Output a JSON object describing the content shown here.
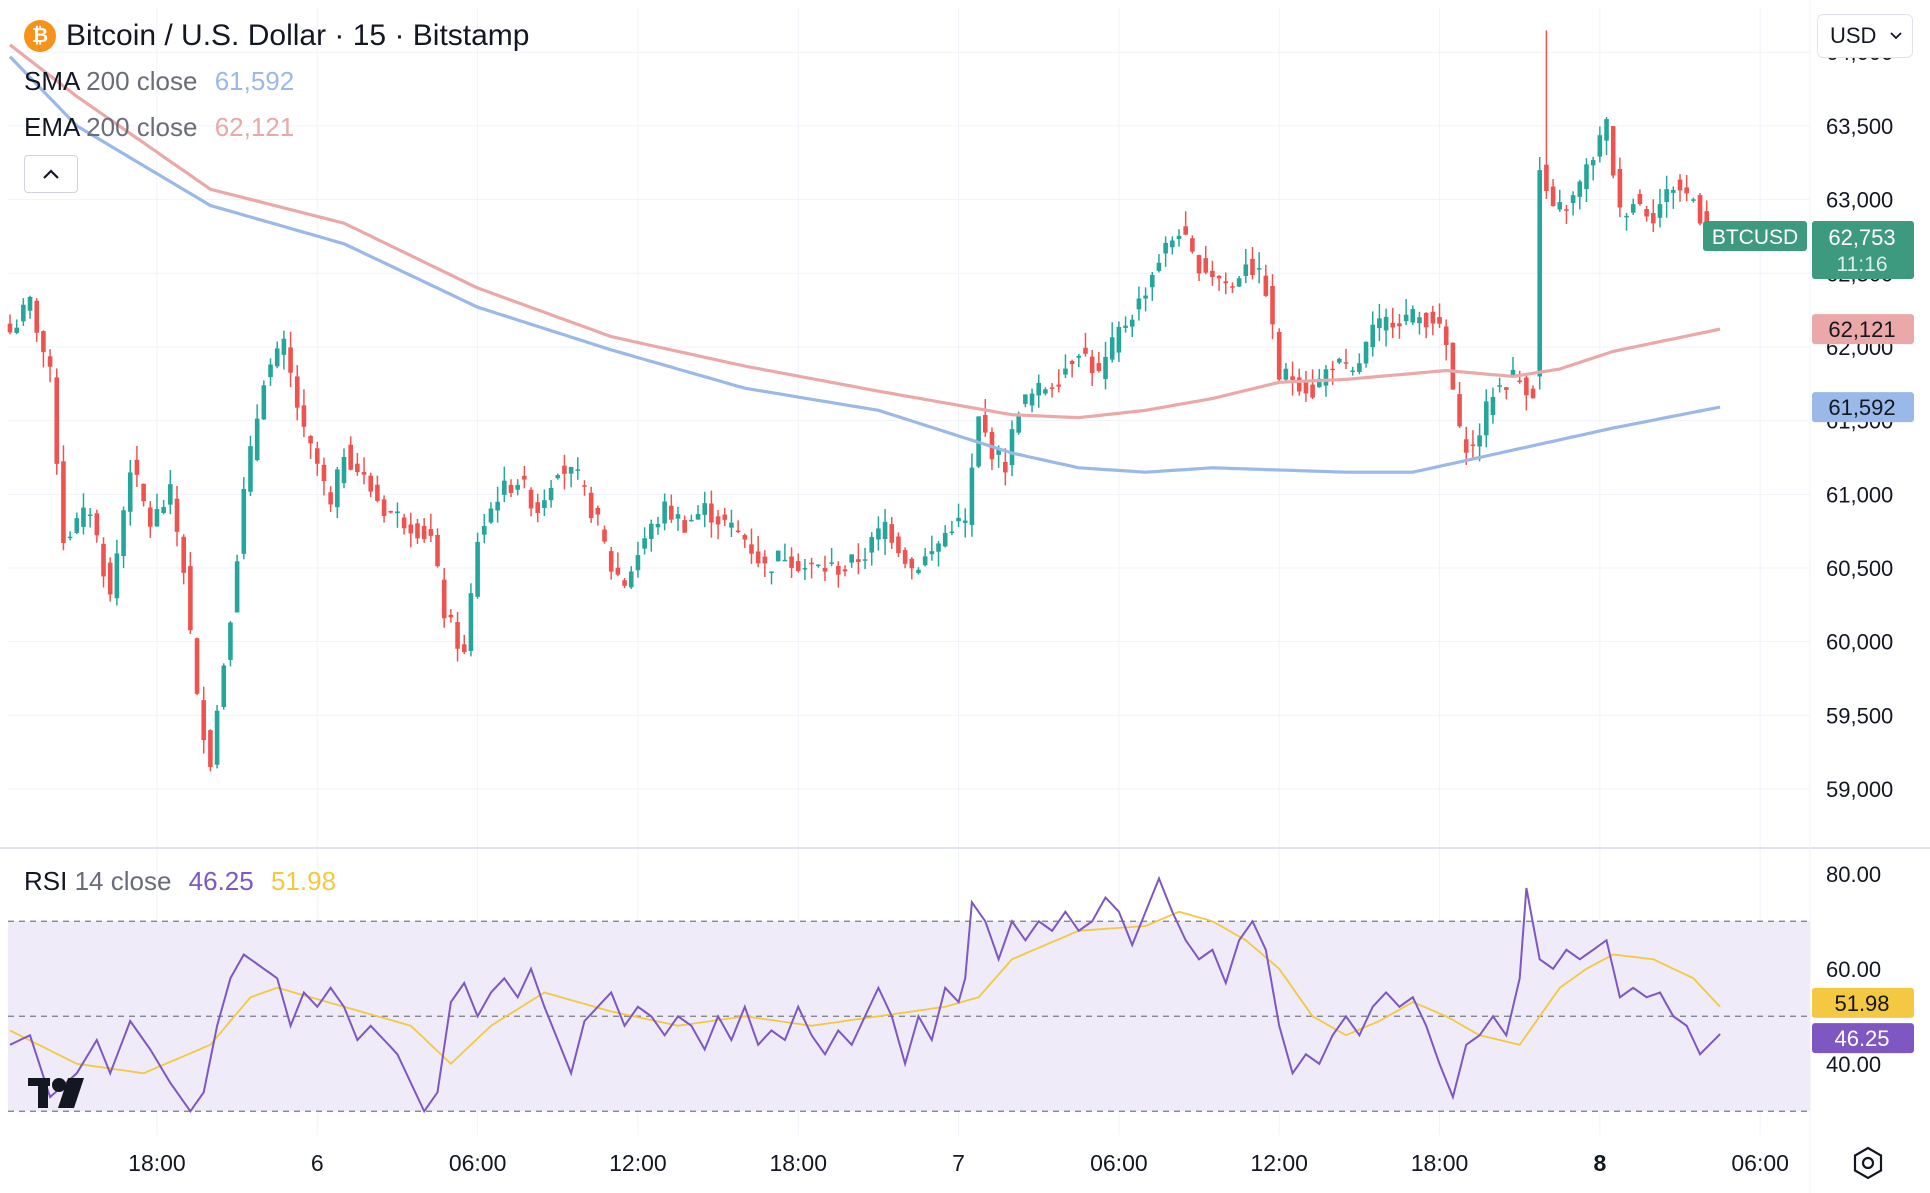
{
  "header": {
    "coin_icon": "bitcoin-icon",
    "symbol_title": "Bitcoin / U.S. Dollar · 15 · Bitstamp",
    "currency": "USD"
  },
  "indicators": {
    "sma": {
      "name": "SMA",
      "params": "200 close",
      "value": "61,592",
      "color": "#9ab9e8"
    },
    "ema": {
      "name": "EMA",
      "params": "200 close",
      "value": "62,121",
      "color": "#eba8a8"
    },
    "rsi": {
      "name": "RSI",
      "params": "14 close",
      "value": "46.25",
      "ma_value": "51.98",
      "color": "#7e57c2",
      "ma_color": "#f5c842"
    }
  },
  "price_axis": {
    "ticks": [
      "64,000",
      "63,500",
      "63,000",
      "62,500",
      "62,000",
      "61,500",
      "61,000",
      "60,500",
      "60,000",
      "59,500",
      "59,000"
    ]
  },
  "rsi_axis": {
    "ticks": [
      "80.00",
      "60.00",
      "40.00"
    ]
  },
  "time_axis": {
    "ticks": [
      "18:00",
      "6",
      "06:00",
      "12:00",
      "18:00",
      "7",
      "06:00",
      "12:00",
      "18:00",
      "8",
      "06:00"
    ]
  },
  "labels": {
    "btc": {
      "ticker": "BTCUSD",
      "price": "62,753",
      "countdown": "11:16",
      "color": "#3d9a7f"
    },
    "ema": "62,121",
    "sma": "61,592",
    "rsi_ma": "51.98",
    "rsi": "46.25"
  },
  "colors": {
    "up": "#26a69a",
    "down": "#ef5350",
    "rsi_band": "#efebf8"
  },
  "chart_data": {
    "type": "candlestick",
    "title": "Bitcoin / U.S. Dollar · 15 · Bitstamp",
    "ylim": [
      58600,
      64300
    ],
    "rsi_ylim": [
      25,
      85
    ],
    "rsi_bands": [
      70,
      50,
      30
    ],
    "x_ticks": [
      {
        "label": "18:00",
        "bar": 22
      },
      {
        "label": "6",
        "bar": 46
      },
      {
        "label": "06:00",
        "bar": 70
      },
      {
        "label": "12:00",
        "bar": 94
      },
      {
        "label": "18:00",
        "bar": 118
      },
      {
        "label": "7",
        "bar": 142
      },
      {
        "label": "06:00",
        "bar": 166
      },
      {
        "label": "12:00",
        "bar": 190
      },
      {
        "label": "18:00",
        "bar": 214
      },
      {
        "label": "8",
        "bar": 238
      },
      {
        "label": "06:00",
        "bar": 262
      }
    ],
    "anchors": [
      [
        0,
        62100
      ],
      [
        3,
        62300
      ],
      [
        6,
        61800
      ],
      [
        8,
        60700
      ],
      [
        12,
        60900
      ],
      [
        15,
        60300
      ],
      [
        18,
        61200
      ],
      [
        21,
        60800
      ],
      [
        24,
        61000
      ],
      [
        26,
        60500
      ],
      [
        28,
        59600
      ],
      [
        30,
        59200
      ],
      [
        33,
        60200
      ],
      [
        35,
        61000
      ],
      [
        38,
        61800
      ],
      [
        41,
        62000
      ],
      [
        44,
        61400
      ],
      [
        46,
        61200
      ],
      [
        48,
        60900
      ],
      [
        50,
        61300
      ],
      [
        53,
        61100
      ],
      [
        56,
        60900
      ],
      [
        60,
        60800
      ],
      [
        63,
        60700
      ],
      [
        65,
        60200
      ],
      [
        68,
        59900
      ],
      [
        70,
        60700
      ],
      [
        73,
        61000
      ],
      [
        76,
        61100
      ],
      [
        79,
        60900
      ],
      [
        82,
        61200
      ],
      [
        85,
        61100
      ],
      [
        88,
        60800
      ],
      [
        90,
        60500
      ],
      [
        92,
        60400
      ],
      [
        95,
        60700
      ],
      [
        98,
        60900
      ],
      [
        101,
        60800
      ],
      [
        104,
        60900
      ],
      [
        107,
        60800
      ],
      [
        110,
        60700
      ],
      [
        113,
        60500
      ],
      [
        116,
        60600
      ],
      [
        119,
        60500
      ],
      [
        122,
        60500
      ],
      [
        125,
        60500
      ],
      [
        128,
        60600
      ],
      [
        131,
        60800
      ],
      [
        135,
        60500
      ],
      [
        138,
        60600
      ],
      [
        141,
        60800
      ],
      [
        143,
        60800
      ],
      [
        145,
        61500
      ],
      [
        147,
        61300
      ],
      [
        149,
        61200
      ],
      [
        151,
        61600
      ],
      [
        154,
        61700
      ],
      [
        157,
        61800
      ],
      [
        160,
        62000
      ],
      [
        163,
        61800
      ],
      [
        166,
        62100
      ],
      [
        169,
        62300
      ],
      [
        172,
        62600
      ],
      [
        175,
        62800
      ],
      [
        177,
        62600
      ],
      [
        180,
        62500
      ],
      [
        183,
        62400
      ],
      [
        185,
        62600
      ],
      [
        188,
        62400
      ],
      [
        190,
        61800
      ],
      [
        192,
        61800
      ],
      [
        195,
        61700
      ],
      [
        198,
        61900
      ],
      [
        201,
        61800
      ],
      [
        204,
        62100
      ],
      [
        207,
        62200
      ],
      [
        210,
        62200
      ],
      [
        213,
        62200
      ],
      [
        215,
        62000
      ],
      [
        217,
        61400
      ],
      [
        219,
        61300
      ],
      [
        222,
        61700
      ],
      [
        225,
        61800
      ],
      [
        228,
        61700
      ],
      [
        229,
        63200
      ],
      [
        231,
        62900
      ],
      [
        234,
        63000
      ],
      [
        237,
        63300
      ],
      [
        239,
        63500
      ],
      [
        241,
        62900
      ],
      [
        243,
        63000
      ],
      [
        246,
        62900
      ],
      [
        249,
        63100
      ],
      [
        252,
        63000
      ],
      [
        254,
        62800
      ],
      [
        256,
        62753
      ]
    ],
    "sma_anchors": [
      [
        0,
        63970
      ],
      [
        10,
        63500
      ],
      [
        30,
        62960
      ],
      [
        50,
        62700
      ],
      [
        70,
        62270
      ],
      [
        90,
        61980
      ],
      [
        110,
        61720
      ],
      [
        130,
        61570
      ],
      [
        150,
        61280
      ],
      [
        160,
        61180
      ],
      [
        170,
        61150
      ],
      [
        180,
        61180
      ],
      [
        200,
        61150
      ],
      [
        210,
        61150
      ],
      [
        220,
        61250
      ],
      [
        230,
        61350
      ],
      [
        240,
        61450
      ],
      [
        256,
        61592
      ]
    ],
    "ema_anchors": [
      [
        0,
        64050
      ],
      [
        10,
        63700
      ],
      [
        30,
        63070
      ],
      [
        50,
        62840
      ],
      [
        70,
        62400
      ],
      [
        90,
        62070
      ],
      [
        110,
        61870
      ],
      [
        130,
        61700
      ],
      [
        150,
        61540
      ],
      [
        160,
        61520
      ],
      [
        170,
        61570
      ],
      [
        180,
        61650
      ],
      [
        190,
        61760
      ],
      [
        200,
        61780
      ],
      [
        215,
        61840
      ],
      [
        225,
        61800
      ],
      [
        232,
        61850
      ],
      [
        240,
        61970
      ],
      [
        256,
        62121
      ]
    ],
    "rsi_anchors": [
      [
        0,
        44
      ],
      [
        3,
        46
      ],
      [
        6,
        33
      ],
      [
        10,
        38
      ],
      [
        13,
        45
      ],
      [
        15,
        38
      ],
      [
        18,
        49
      ],
      [
        21,
        43
      ],
      [
        24,
        36
      ],
      [
        27,
        30
      ],
      [
        29,
        34
      ],
      [
        31,
        48
      ],
      [
        33,
        58
      ],
      [
        35,
        63
      ],
      [
        37,
        61
      ],
      [
        40,
        58
      ],
      [
        42,
        48
      ],
      [
        44,
        55
      ],
      [
        46,
        52
      ],
      [
        48,
        56
      ],
      [
        50,
        52
      ],
      [
        52,
        45
      ],
      [
        54,
        48
      ],
      [
        56,
        45
      ],
      [
        58,
        42
      ],
      [
        60,
        36
      ],
      [
        62,
        30
      ],
      [
        64,
        34
      ],
      [
        66,
        53
      ],
      [
        68,
        57
      ],
      [
        70,
        50
      ],
      [
        72,
        55
      ],
      [
        74,
        58
      ],
      [
        76,
        54
      ],
      [
        78,
        60
      ],
      [
        80,
        52
      ],
      [
        82,
        45
      ],
      [
        84,
        38
      ],
      [
        86,
        49
      ],
      [
        88,
        52
      ],
      [
        90,
        55
      ],
      [
        92,
        48
      ],
      [
        94,
        52
      ],
      [
        96,
        50
      ],
      [
        98,
        46
      ],
      [
        100,
        50
      ],
      [
        102,
        48
      ],
      [
        104,
        43
      ],
      [
        106,
        50
      ],
      [
        108,
        45
      ],
      [
        110,
        52
      ],
      [
        112,
        44
      ],
      [
        114,
        47
      ],
      [
        116,
        45
      ],
      [
        118,
        52
      ],
      [
        120,
        46
      ],
      [
        122,
        42
      ],
      [
        124,
        47
      ],
      [
        126,
        44
      ],
      [
        128,
        50
      ],
      [
        130,
        56
      ],
      [
        132,
        50
      ],
      [
        134,
        40
      ],
      [
        136,
        50
      ],
      [
        138,
        45
      ],
      [
        140,
        56
      ],
      [
        142,
        53
      ],
      [
        143,
        58
      ],
      [
        144,
        74
      ],
      [
        146,
        70
      ],
      [
        148,
        62
      ],
      [
        150,
        70
      ],
      [
        152,
        66
      ],
      [
        154,
        70
      ],
      [
        156,
        68
      ],
      [
        158,
        72
      ],
      [
        160,
        68
      ],
      [
        162,
        70
      ],
      [
        164,
        75
      ],
      [
        166,
        72
      ],
      [
        168,
        65
      ],
      [
        170,
        72
      ],
      [
        172,
        79
      ],
      [
        174,
        72
      ],
      [
        176,
        66
      ],
      [
        178,
        62
      ],
      [
        180,
        64
      ],
      [
        182,
        57
      ],
      [
        184,
        66
      ],
      [
        186,
        70
      ],
      [
        188,
        64
      ],
      [
        190,
        48
      ],
      [
        192,
        38
      ],
      [
        194,
        42
      ],
      [
        196,
        40
      ],
      [
        198,
        46
      ],
      [
        200,
        50
      ],
      [
        202,
        46
      ],
      [
        204,
        52
      ],
      [
        206,
        55
      ],
      [
        208,
        52
      ],
      [
        210,
        54
      ],
      [
        212,
        48
      ],
      [
        214,
        40
      ],
      [
        216,
        33
      ],
      [
        218,
        44
      ],
      [
        220,
        46
      ],
      [
        222,
        50
      ],
      [
        224,
        46
      ],
      [
        226,
        58
      ],
      [
        227,
        77
      ],
      [
        229,
        62
      ],
      [
        231,
        60
      ],
      [
        233,
        64
      ],
      [
        235,
        62
      ],
      [
        237,
        64
      ],
      [
        239,
        66
      ],
      [
        241,
        54
      ],
      [
        243,
        56
      ],
      [
        245,
        54
      ],
      [
        247,
        55
      ],
      [
        249,
        50
      ],
      [
        251,
        48
      ],
      [
        253,
        42
      ],
      [
        256,
        46.25
      ]
    ],
    "rsi_ma_anchors": [
      [
        0,
        47
      ],
      [
        10,
        40
      ],
      [
        20,
        38
      ],
      [
        30,
        44
      ],
      [
        36,
        54
      ],
      [
        40,
        56
      ],
      [
        50,
        52
      ],
      [
        60,
        48
      ],
      [
        66,
        40
      ],
      [
        72,
        48
      ],
      [
        80,
        55
      ],
      [
        90,
        51
      ],
      [
        100,
        48
      ],
      [
        110,
        50
      ],
      [
        120,
        48
      ],
      [
        130,
        50
      ],
      [
        140,
        52
      ],
      [
        145,
        54
      ],
      [
        150,
        62
      ],
      [
        160,
        68
      ],
      [
        170,
        69
      ],
      [
        175,
        72
      ],
      [
        180,
        70
      ],
      [
        185,
        66
      ],
      [
        190,
        60
      ],
      [
        195,
        50
      ],
      [
        200,
        46
      ],
      [
        205,
        49
      ],
      [
        210,
        53
      ],
      [
        215,
        50
      ],
      [
        220,
        46
      ],
      [
        226,
        44
      ],
      [
        232,
        56
      ],
      [
        236,
        60
      ],
      [
        240,
        63
      ],
      [
        246,
        62
      ],
      [
        252,
        58
      ],
      [
        256,
        51.98
      ]
    ]
  }
}
